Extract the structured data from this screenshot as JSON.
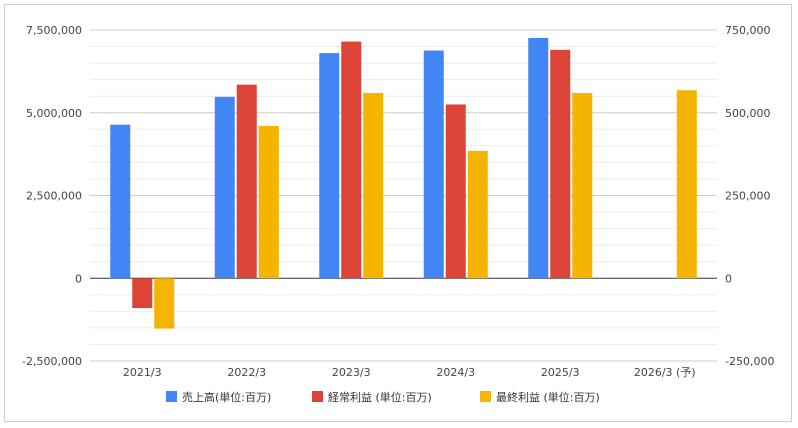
{
  "chart_data": {
    "type": "bar",
    "categories": [
      "2021/3",
      "2022/3",
      "2023/3",
      "2024/3",
      "2025/3",
      "2026/3 (予)"
    ],
    "series": [
      {
        "name": "売上高(単位:百万)",
        "axis": "left",
        "color": "#4285f4",
        "values": [
          4640000,
          5480000,
          6800000,
          6880000,
          7260000,
          null
        ]
      },
      {
        "name": "経常利益 (単位:百万)",
        "axis": "right",
        "color": "#db4437",
        "values": [
          -90000,
          585000,
          715000,
          525000,
          690000,
          null
        ]
      },
      {
        "name": "最終利益 (単位:百万)",
        "axis": "right",
        "color": "#f4b400",
        "values": [
          -152000,
          460000,
          560000,
          385000,
          560000,
          568000
        ]
      }
    ],
    "y_left": {
      "ylim": [
        -2500000,
        7500000
      ],
      "ticks": [
        "-2,500,000",
        "0",
        "2,500,000",
        "5,000,000",
        "7,500,000"
      ],
      "tick_values": [
        -2500000,
        0,
        2500000,
        5000000,
        7500000
      ]
    },
    "y_right": {
      "ylim": [
        -250000,
        750000
      ],
      "ticks": [
        "-250,000",
        "0",
        "250,000",
        "500,000",
        "750,000"
      ],
      "tick_values": [
        -250000,
        0,
        250000,
        500000,
        750000
      ]
    },
    "minor_grid_lines": 4,
    "legend_position": "bottom",
    "grid": true
  }
}
